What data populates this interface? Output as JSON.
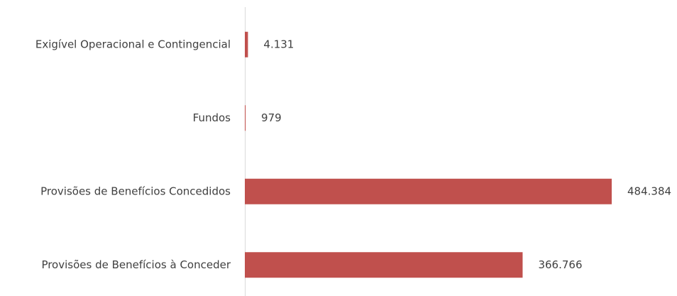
{
  "chart_data": {
    "type": "bar",
    "orientation": "horizontal",
    "categories": [
      "Exigível Operacional e Contingencial",
      "Fundos",
      "Provisões de Benefícios Concedidos",
      "Provisões de Benefícios à Conceder"
    ],
    "values": [
      4131,
      979,
      484384,
      366766
    ],
    "value_labels": [
      "4.131",
      "979",
      "484.384",
      "366.766"
    ],
    "color": "#c0504d"
  }
}
